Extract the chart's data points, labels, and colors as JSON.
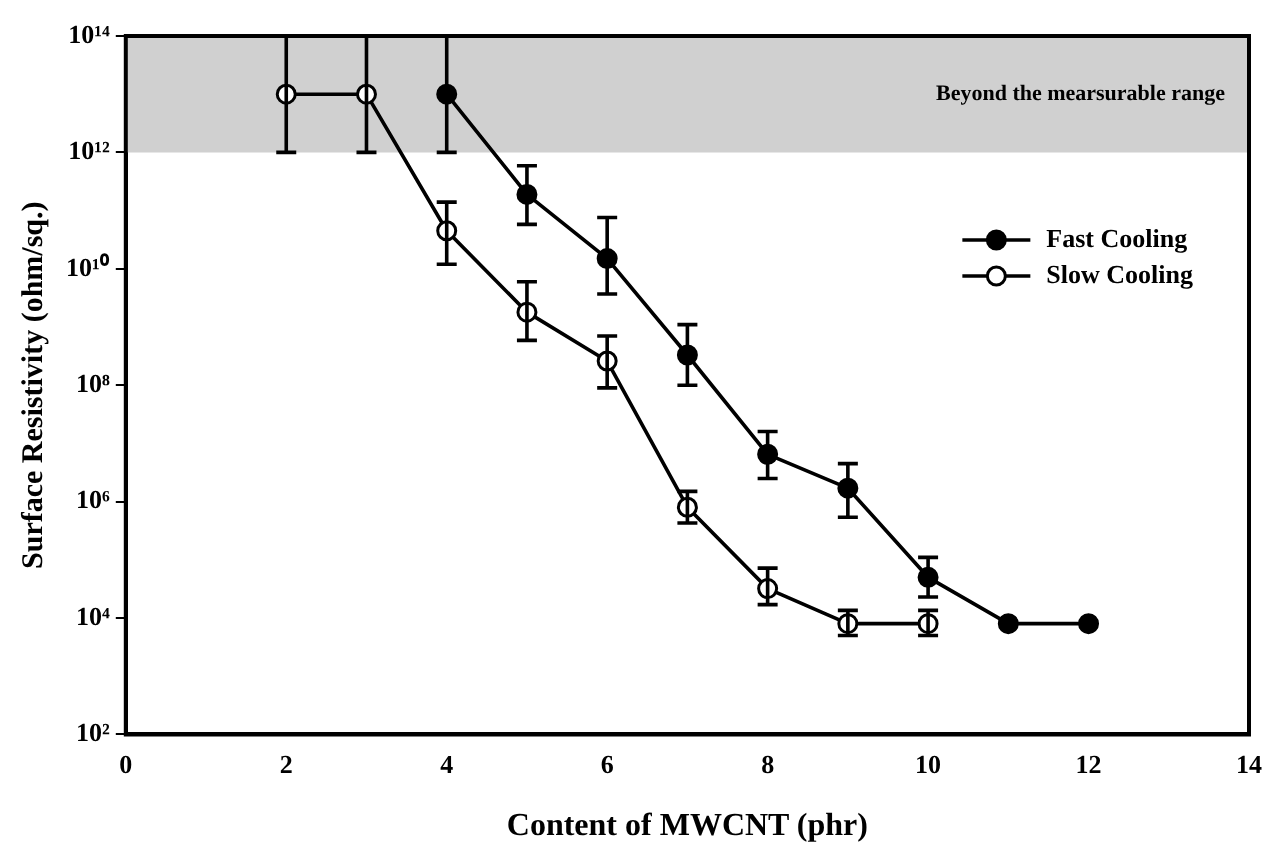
{
  "chart_data": {
    "type": "line",
    "xlabel": "Content of MWCNT (phr)",
    "ylabel": "Surface Resistivity (ohm/sq.)",
    "xlim": [
      0,
      14
    ],
    "xticks": [
      0,
      2,
      4,
      6,
      8,
      10,
      12,
      14
    ],
    "ylim": [
      100,
      100000000000000
    ],
    "log": "y",
    "yticks": [
      {
        "value": 100,
        "label": "10²"
      },
      {
        "value": 10000,
        "label": "10⁴"
      },
      {
        "value": 1000000,
        "label": "10⁶"
      },
      {
        "value": 100000000,
        "label": "10⁸"
      },
      {
        "value": 10000000000,
        "label": "10¹⁰"
      },
      {
        "value": 1000000000000,
        "label": "10¹²"
      },
      {
        "value": 100000000000000,
        "label": "10¹⁴"
      }
    ],
    "grid": false,
    "legend": "top right",
    "marker": "circle",
    "line_style": "solid",
    "bands": [
      {
        "axis": "y",
        "from": 1000000000000,
        "to": 100000000000000,
        "label": "Beyond the mearsurable range",
        "color": "#d0d0d0"
      }
    ],
    "series": [
      {
        "name": "Fast Cooling",
        "color": "#000000",
        "x": [
          4,
          5,
          6,
          7,
          8,
          9,
          10,
          11,
          12
        ],
        "values": [
          10000000000000.0,
          190000000000.0,
          15000000000.0,
          330000000.0,
          6500000.0,
          1700000.0,
          50000.0,
          8000.0,
          8000.0
        ],
        "errors": [
          [
            1000000000000.0,
            100000000000000.0
          ],
          [
            58000000000.0,
            590000000000.0
          ],
          [
            3700000000.0,
            76000000000.0
          ],
          [
            100000000.0,
            1100000000.0
          ],
          [
            2500000.0,
            16000000.0
          ],
          [
            540000.0,
            4500000.0
          ],
          [
            23000.0,
            110000.0
          ],
          null,
          null
        ]
      },
      {
        "name": "Slow Cooling",
        "color": "#000000",
        "x": [
          2,
          3,
          4,
          5,
          6,
          7,
          8,
          9,
          10
        ],
        "values": [
          10000000000000.0,
          10000000000000.0,
          45000000000.0,
          1800000000.0,
          260000000.0,
          800000.0,
          32000.0,
          8000.0,
          8000.0
        ],
        "errors": [
          [
            1000000000000.0,
            100000000000000.0
          ],
          [
            1000000000000.0,
            100000000000000.0
          ],
          [
            12000000000.0,
            140000000000.0
          ],
          [
            590000000.0,
            6000000000.0
          ],
          [
            90000000.0,
            700000000.0
          ],
          [
            430000.0,
            1500000.0
          ],
          [
            17000.0,
            72000.0
          ],
          [
            5000.0,
            13500.0
          ],
          [
            5000.0,
            13500.0
          ]
        ]
      }
    ]
  }
}
